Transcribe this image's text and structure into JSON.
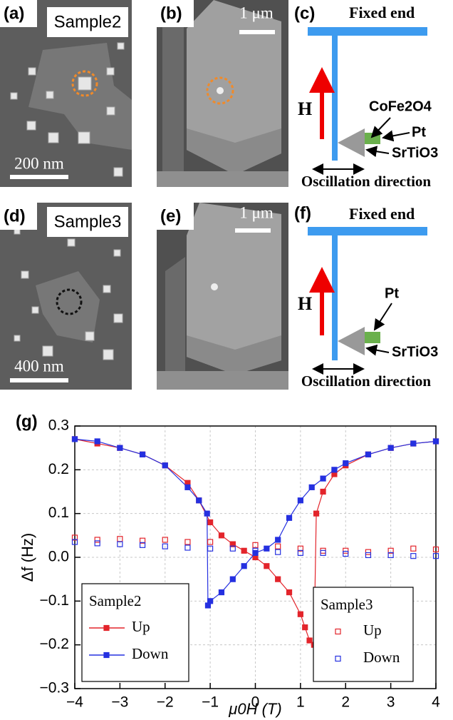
{
  "panels": [
    {
      "label": "(a)",
      "sample": "Sample2",
      "scale_bar": "200 nm"
    },
    {
      "label": "(b)",
      "scale_bar": "1 μm"
    },
    {
      "label": "(c)",
      "fixed_end": "Fixed end",
      "field": "H",
      "labels": [
        "CoFe2O4",
        "Pt",
        "SrTiO3"
      ],
      "direction": "Oscillation direction"
    },
    {
      "label": "(d)",
      "sample": "Sample3",
      "scale_bar": "400 nm"
    },
    {
      "label": "(e)",
      "scale_bar": "1 μm"
    },
    {
      "label": "(f)",
      "fixed_end": "Fixed end",
      "field": "H",
      "labels": [
        "Pt",
        "SrTiO3"
      ],
      "direction": "Oscillation direction"
    }
  ],
  "chart_label": "(g)",
  "chart_data": {
    "type": "scatter",
    "x_label": "μ0H (T)",
    "y_label": "Δf (Hz)",
    "xlim": [
      -4,
      4
    ],
    "ylim": [
      -0.3,
      0.3
    ],
    "xticks": [
      {
        "value": -4,
        "label": "−4"
      },
      {
        "value": -3,
        "label": "−3"
      },
      {
        "value": -2,
        "label": "−2"
      },
      {
        "value": -1,
        "label": "−1"
      },
      0,
      1,
      2,
      3,
      4
    ],
    "yticks": [
      {
        "value": -0.3,
        "label": "−0.3"
      },
      {
        "value": -0.2,
        "label": "−0.2"
      },
      {
        "value": -0.1,
        "label": "−0.1"
      },
      {
        "value": 0,
        "label": "0.0"
      },
      0.1,
      0.2,
      0.3
    ],
    "grid": true,
    "legend_titles": [
      "Sample2",
      "Sample3"
    ],
    "series": [
      {
        "name": "Up",
        "color": "#e3242b",
        "marker": "filled",
        "line": true,
        "x": [
          -4,
          -3.5,
          -3,
          -2.5,
          -2,
          -1.5,
          -1.25,
          -1,
          -0.75,
          -0.5,
          -0.25,
          0,
          0.25,
          0.5,
          0.75,
          1,
          1.1,
          1.2,
          1.3,
          1.35,
          1.5,
          1.75,
          2,
          2.5,
          3,
          3.5,
          4
        ],
        "values": [
          0.27,
          0.26,
          0.25,
          0.235,
          0.21,
          0.17,
          0.13,
          0.08,
          0.05,
          0.03,
          0.015,
          0.0,
          -0.02,
          -0.05,
          -0.08,
          -0.13,
          -0.16,
          -0.19,
          -0.2,
          0.1,
          0.15,
          0.19,
          0.21,
          0.235,
          0.25,
          0.26,
          0.265
        ]
      },
      {
        "name": "Down",
        "color": "#2530e0",
        "marker": "filled",
        "line": true,
        "x": [
          4,
          3.5,
          3,
          2.5,
          2,
          1.75,
          1.5,
          1.25,
          1,
          0.75,
          0.5,
          0.25,
          0,
          -0.25,
          -0.5,
          -0.75,
          -1,
          -1.05,
          -1.07,
          -1.25,
          -1.5,
          -2,
          -2.5,
          -3,
          -3.5,
          -4
        ],
        "values": [
          0.265,
          0.26,
          0.25,
          0.235,
          0.215,
          0.2,
          0.18,
          0.16,
          0.13,
          0.09,
          0.04,
          0.02,
          0.01,
          -0.02,
          -0.05,
          -0.08,
          -0.1,
          -0.11,
          0.1,
          0.13,
          0.16,
          0.21,
          0.235,
          0.25,
          0.265,
          0.27
        ]
      },
      {
        "name": "Up",
        "color": "#e3242b",
        "marker": "open",
        "line": false,
        "x": [
          -4,
          -3.5,
          -3,
          -2.5,
          -2,
          -1.5,
          -1,
          -0.5,
          0,
          0.5,
          1,
          1.5,
          2,
          2.5,
          3,
          3.5,
          4
        ],
        "values": [
          0.045,
          0.04,
          0.042,
          0.038,
          0.04,
          0.035,
          0.035,
          0.03,
          0.028,
          0.025,
          0.02,
          0.015,
          0.015,
          0.012,
          0.015,
          0.02,
          0.018
        ]
      },
      {
        "name": "Down",
        "color": "#2530e0",
        "marker": "open",
        "line": false,
        "x": [
          -4,
          -3.5,
          -3,
          -2.5,
          -2,
          -1.5,
          -1,
          -0.5,
          0,
          0.5,
          1,
          1.5,
          2,
          2.5,
          3,
          3.5,
          4
        ],
        "values": [
          0.035,
          0.032,
          0.03,
          0.028,
          0.025,
          0.022,
          0.02,
          0.02,
          0.015,
          0.012,
          0.01,
          0.01,
          0.008,
          0.005,
          0.005,
          0.003,
          0.003
        ]
      }
    ]
  }
}
